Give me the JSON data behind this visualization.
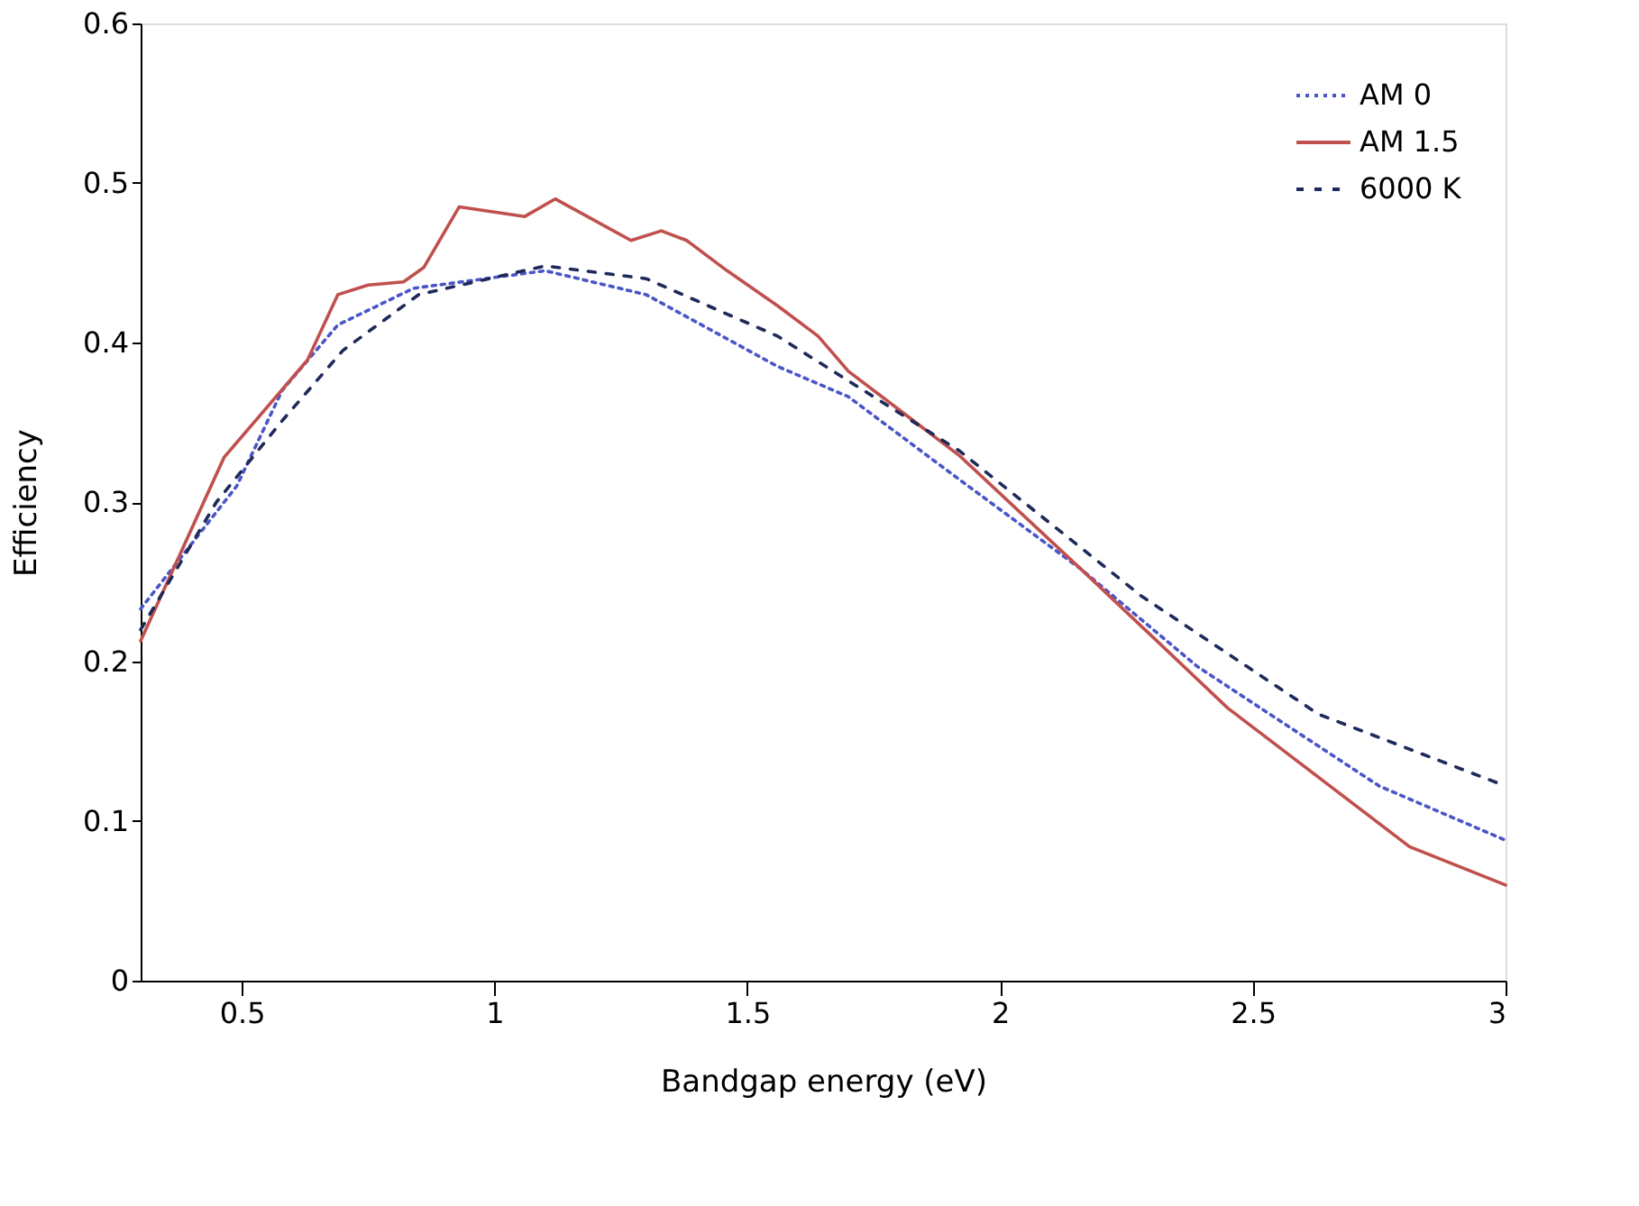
{
  "chart_data": {
    "type": "line",
    "xlabel": "Bandgap energy (eV)",
    "ylabel": "Efficiency",
    "xlim": [
      0.3,
      3
    ],
    "xticks": [
      0.5,
      1,
      1.5,
      2,
      2.5,
      3
    ],
    "ylim": [
      0,
      0.6
    ],
    "yticks": [
      0,
      0.1,
      0.2,
      0.3,
      0.4,
      0.5,
      0.6
    ],
    "grid": false,
    "legend": "top right",
    "marker": "none",
    "series": [
      {
        "name": "AM 0",
        "color": "#4a55c8",
        "line_style": "dotted",
        "x": [
          0.3,
          0.49,
          0.58,
          0.69,
          0.84,
          1.1,
          1.3,
          1.56,
          1.7,
          1.92,
          2.16,
          2.39,
          2.75,
          3.0
        ],
        "values": [
          0.233,
          0.31,
          0.37,
          0.411,
          0.434,
          0.445,
          0.43,
          0.385,
          0.366,
          0.314,
          0.258,
          0.197,
          0.122,
          0.088
        ]
      },
      {
        "name": "AM 1.5",
        "color": "#c0504d",
        "line_style": "solid",
        "x": [
          0.3,
          0.465,
          0.63,
          0.69,
          0.75,
          0.82,
          0.86,
          0.93,
          1.06,
          1.12,
          1.27,
          1.33,
          1.38,
          1.46,
          1.56,
          1.64,
          1.7,
          1.92,
          2.16,
          2.45,
          2.81,
          3.0
        ],
        "values": [
          0.213,
          0.328,
          0.389,
          0.43,
          0.436,
          0.438,
          0.447,
          0.485,
          0.479,
          0.49,
          0.464,
          0.47,
          0.464,
          0.445,
          0.423,
          0.404,
          0.382,
          0.329,
          0.258,
          0.171,
          0.084,
          0.06
        ]
      },
      {
        "name": "6000 K",
        "color": "#1f2a5a",
        "line_style": "dashed",
        "x": [
          0.3,
          0.45,
          0.58,
          0.7,
          0.85,
          1.1,
          1.3,
          1.56,
          1.92,
          2.28,
          2.63,
          3.0
        ],
        "values": [
          0.22,
          0.3,
          0.351,
          0.395,
          0.43,
          0.448,
          0.44,
          0.404,
          0.332,
          0.241,
          0.167,
          0.122
        ]
      }
    ]
  }
}
